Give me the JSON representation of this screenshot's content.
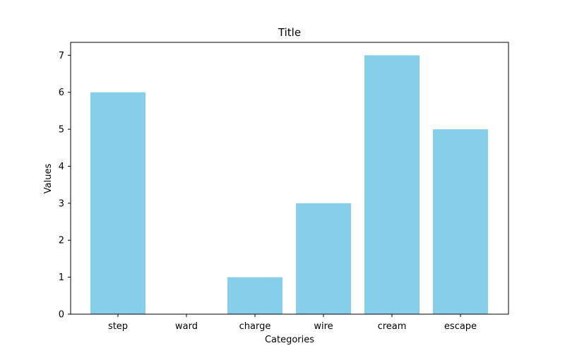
{
  "chart_data": {
    "type": "bar",
    "title": "Title",
    "xlabel": "Categories",
    "ylabel": "Values",
    "categories": [
      "step",
      "ward",
      "charge",
      "wire",
      "cream",
      "escape"
    ],
    "values": [
      6,
      0,
      1,
      3,
      7,
      5
    ],
    "ylim": [
      0,
      7.35
    ],
    "yticks": [
      0,
      1,
      2,
      3,
      4,
      5,
      6,
      7
    ],
    "grid": false,
    "legend": false,
    "bar_color": "#87ceeb",
    "axis_color": "#000000",
    "background": "#ffffff"
  }
}
